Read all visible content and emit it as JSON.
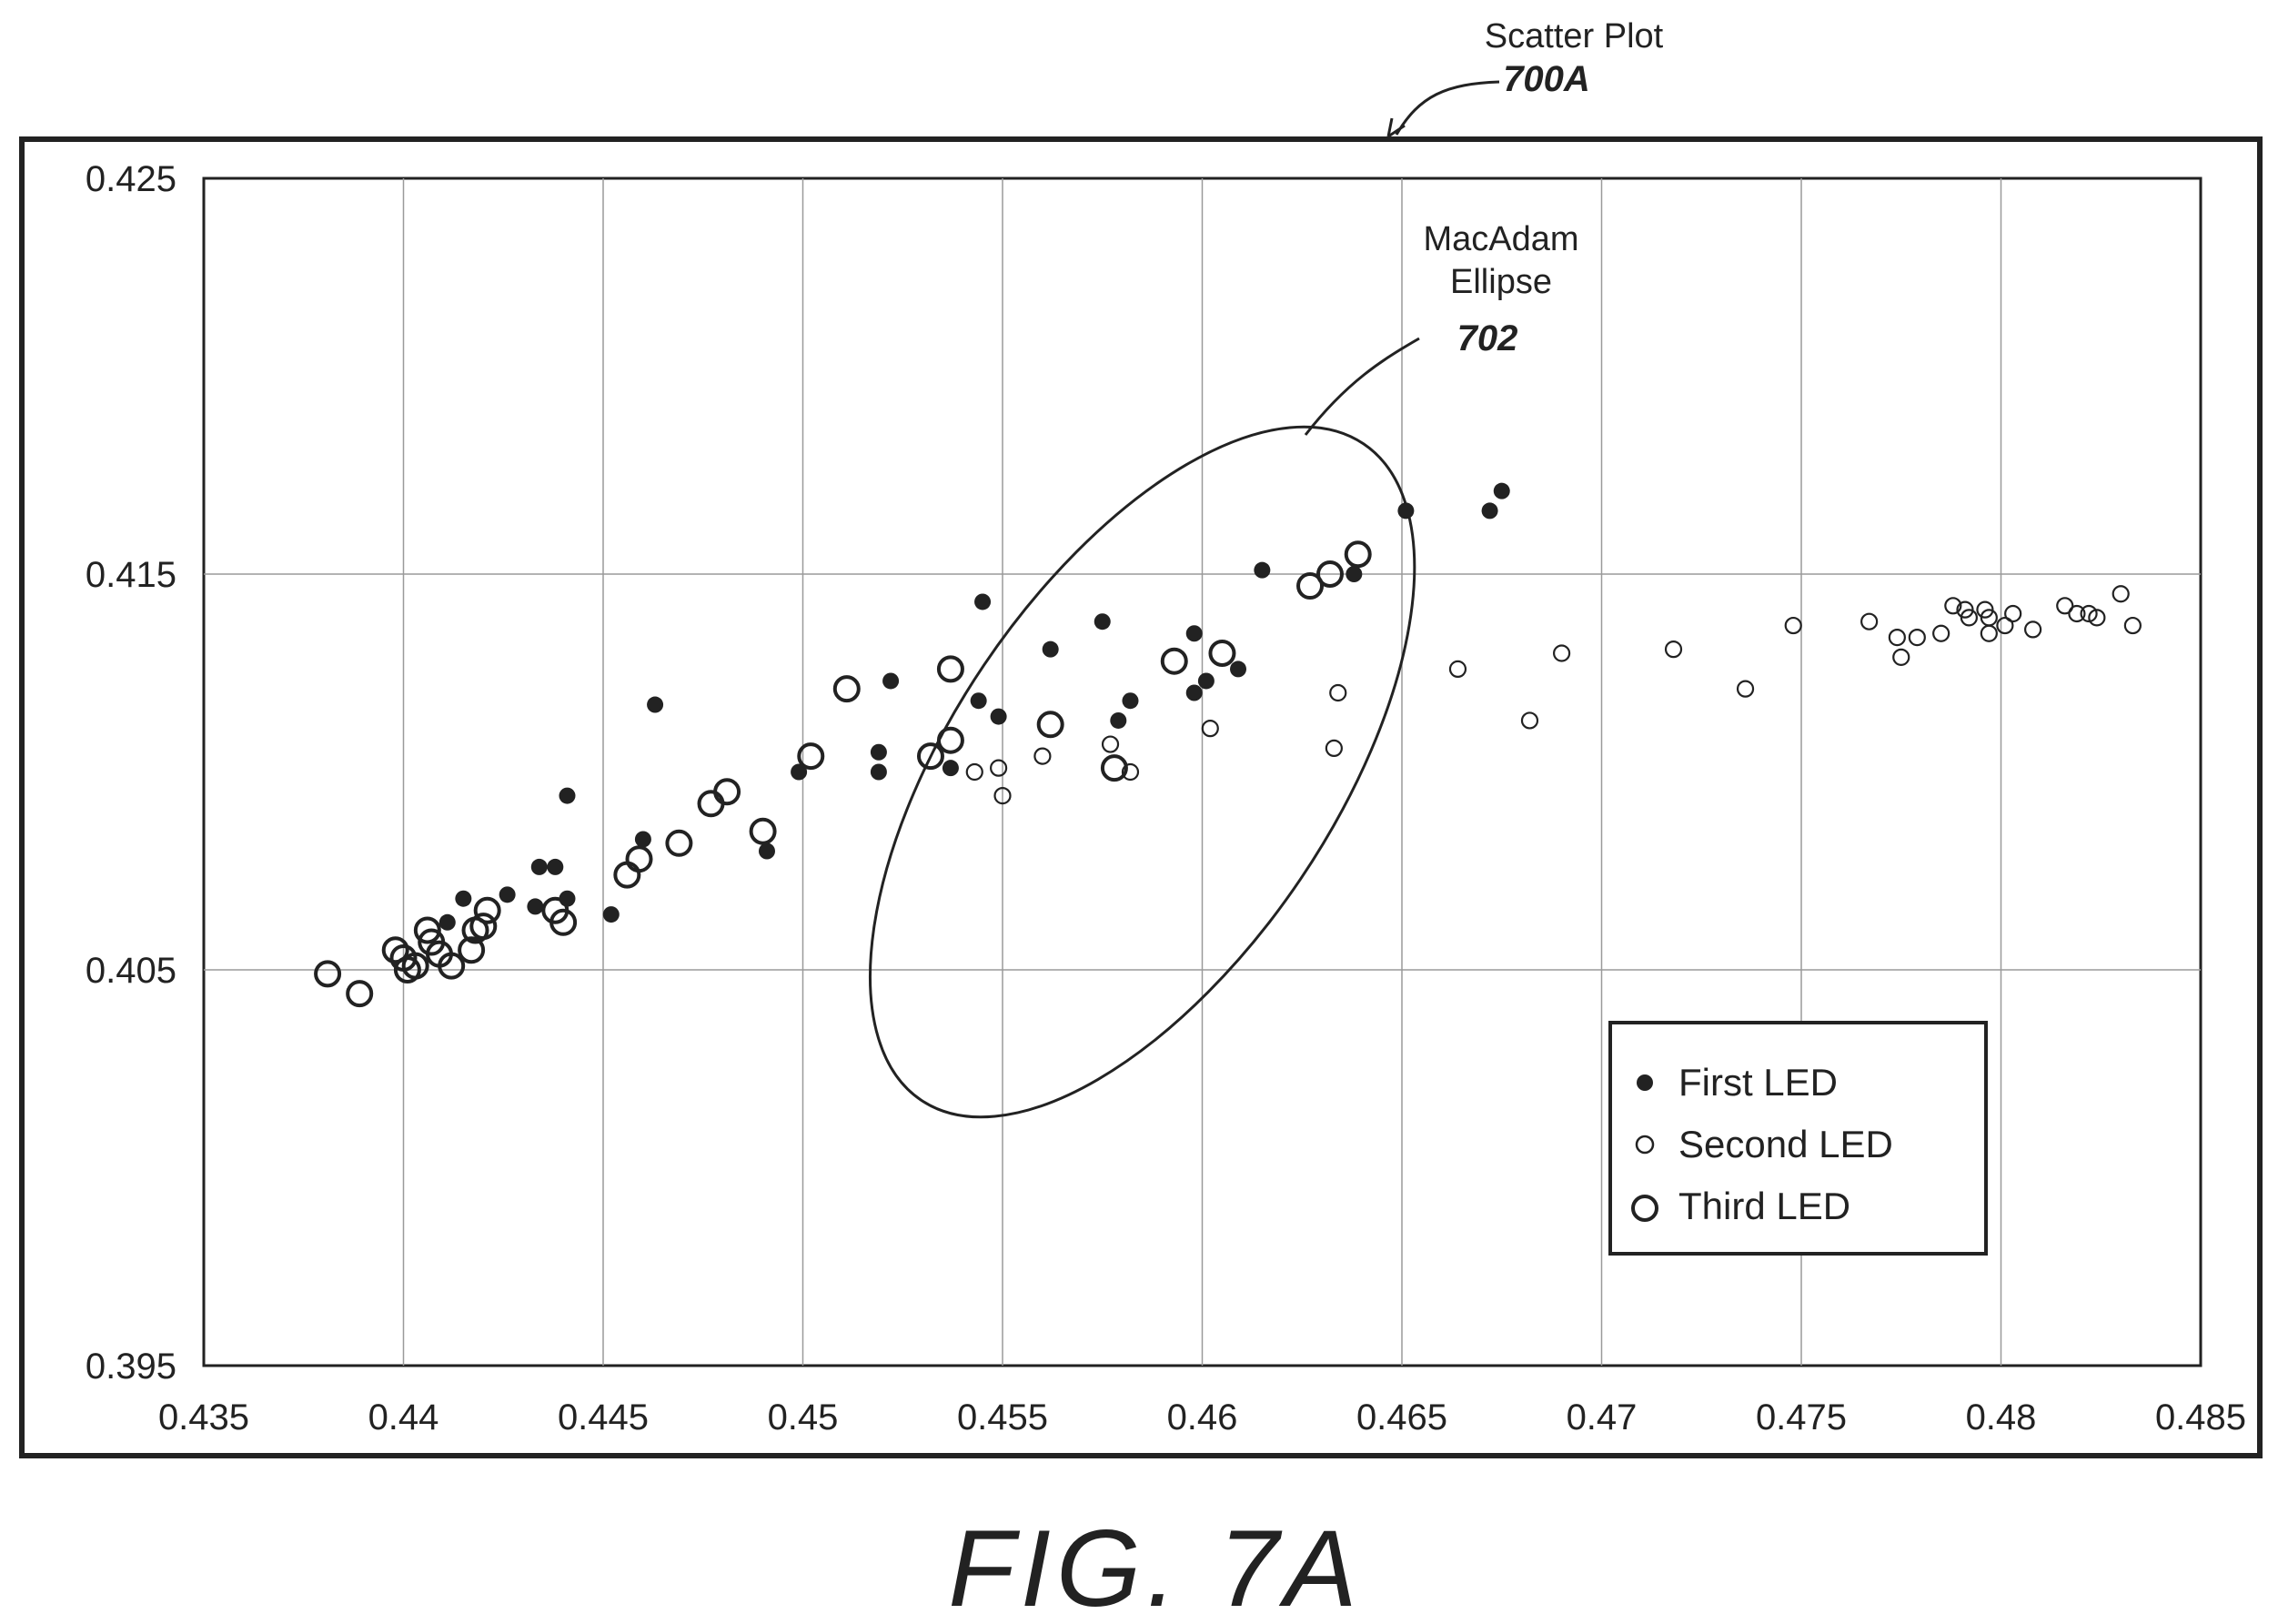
{
  "header": {
    "title": "Scatter Plot",
    "title_ref": "700A"
  },
  "annotation": {
    "label_line1": "MacAdam",
    "label_line2": "Ellipse",
    "ref": "702"
  },
  "figure_label": "FIG.  7A",
  "chart_data": {
    "type": "scatter",
    "title": "",
    "xlabel": "",
    "ylabel": "",
    "xlim": [
      0.435,
      0.485
    ],
    "ylim": [
      0.395,
      0.425
    ],
    "x_ticks": [
      "0.435",
      "0.44",
      "0.445",
      "0.45",
      "0.455",
      "0.46",
      "0.465",
      "0.47",
      "0.475",
      "0.48",
      "0.485"
    ],
    "y_ticks": [
      "0.395",
      "0.405",
      "0.415",
      "0.425"
    ],
    "grid": true,
    "legend_position": "bottom-right",
    "series": [
      {
        "name": "First LED",
        "marker": "filled-small",
        "points": [
          [
            0.4411,
            0.4062
          ],
          [
            0.4415,
            0.4068
          ],
          [
            0.4426,
            0.4069
          ],
          [
            0.4433,
            0.4066
          ],
          [
            0.4434,
            0.4076
          ],
          [
            0.4438,
            0.4076
          ],
          [
            0.4441,
            0.4068
          ],
          [
            0.4441,
            0.4094
          ],
          [
            0.4452,
            0.4064
          ],
          [
            0.446,
            0.4083
          ],
          [
            0.4463,
            0.4117
          ],
          [
            0.4491,
            0.408
          ],
          [
            0.4499,
            0.41
          ],
          [
            0.4519,
            0.4105
          ],
          [
            0.4519,
            0.41
          ],
          [
            0.4522,
            0.4123
          ],
          [
            0.4537,
            0.4101
          ],
          [
            0.4544,
            0.4118
          ],
          [
            0.4545,
            0.4143
          ],
          [
            0.4549,
            0.4114
          ],
          [
            0.4562,
            0.4131
          ],
          [
            0.4575,
            0.4138
          ],
          [
            0.4579,
            0.4113
          ],
          [
            0.4582,
            0.4118
          ],
          [
            0.4598,
            0.412
          ],
          [
            0.4598,
            0.4135
          ],
          [
            0.4601,
            0.4123
          ],
          [
            0.4609,
            0.4126
          ],
          [
            0.4615,
            0.4151
          ],
          [
            0.4638,
            0.415
          ],
          [
            0.4651,
            0.4166
          ],
          [
            0.4672,
            0.4166
          ],
          [
            0.4675,
            0.4171
          ]
        ]
      },
      {
        "name": "Second LED",
        "marker": "hollow-small",
        "points": [
          [
            0.4543,
            0.41
          ],
          [
            0.4549,
            0.4101
          ],
          [
            0.455,
            0.4094
          ],
          [
            0.456,
            0.4104
          ],
          [
            0.4577,
            0.4107
          ],
          [
            0.4582,
            0.41
          ],
          [
            0.4602,
            0.4111
          ],
          [
            0.4633,
            0.4106
          ],
          [
            0.4634,
            0.412
          ],
          [
            0.4664,
            0.4126
          ],
          [
            0.4682,
            0.4113
          ],
          [
            0.469,
            0.413
          ],
          [
            0.4718,
            0.4131
          ],
          [
            0.4736,
            0.4121
          ],
          [
            0.4748,
            0.4137
          ],
          [
            0.4767,
            0.4138
          ],
          [
            0.4774,
            0.4134
          ],
          [
            0.4775,
            0.4129
          ],
          [
            0.4779,
            0.4134
          ],
          [
            0.4785,
            0.4135
          ],
          [
            0.4788,
            0.4142
          ],
          [
            0.4791,
            0.4141
          ],
          [
            0.4792,
            0.4139
          ],
          [
            0.4796,
            0.4141
          ],
          [
            0.4797,
            0.4139
          ],
          [
            0.4797,
            0.4135
          ],
          [
            0.4801,
            0.4137
          ],
          [
            0.4803,
            0.414
          ],
          [
            0.4808,
            0.4136
          ],
          [
            0.4816,
            0.4142
          ],
          [
            0.4819,
            0.414
          ],
          [
            0.4822,
            0.414
          ],
          [
            0.4824,
            0.4139
          ],
          [
            0.483,
            0.4145
          ],
          [
            0.4833,
            0.4137
          ]
        ]
      },
      {
        "name": "Third LED",
        "marker": "hollow-large",
        "points": [
          [
            0.4381,
            0.4049
          ],
          [
            0.4389,
            0.4044
          ],
          [
            0.4398,
            0.4055
          ],
          [
            0.44,
            0.4053
          ],
          [
            0.4401,
            0.405
          ],
          [
            0.4403,
            0.4051
          ],
          [
            0.4406,
            0.406
          ],
          [
            0.4407,
            0.4057
          ],
          [
            0.4409,
            0.4054
          ],
          [
            0.4412,
            0.4051
          ],
          [
            0.4417,
            0.4055
          ],
          [
            0.4418,
            0.406
          ],
          [
            0.442,
            0.4061
          ],
          [
            0.4421,
            0.4065
          ],
          [
            0.4438,
            0.4065
          ],
          [
            0.444,
            0.4062
          ],
          [
            0.4456,
            0.4074
          ],
          [
            0.4459,
            0.4078
          ],
          [
            0.4469,
            0.4082
          ],
          [
            0.4477,
            0.4092
          ],
          [
            0.4481,
            0.4095
          ],
          [
            0.449,
            0.4085
          ],
          [
            0.4502,
            0.4104
          ],
          [
            0.4511,
            0.4121
          ],
          [
            0.4532,
            0.4104
          ],
          [
            0.4537,
            0.4108
          ],
          [
            0.4537,
            0.4126
          ],
          [
            0.4562,
            0.4112
          ],
          [
            0.4578,
            0.4101
          ],
          [
            0.4593,
            0.4128
          ],
          [
            0.4605,
            0.413
          ],
          [
            0.4627,
            0.4147
          ],
          [
            0.4632,
            0.415
          ],
          [
            0.4639,
            0.4155
          ]
        ]
      }
    ],
    "annotation_ellipse": {
      "label": "MacAdam Ellipse",
      "center": [
        0.4585,
        0.41
      ],
      "semi_axis_major": 0.0055,
      "semi_axis_minor": 0.0016
    }
  }
}
